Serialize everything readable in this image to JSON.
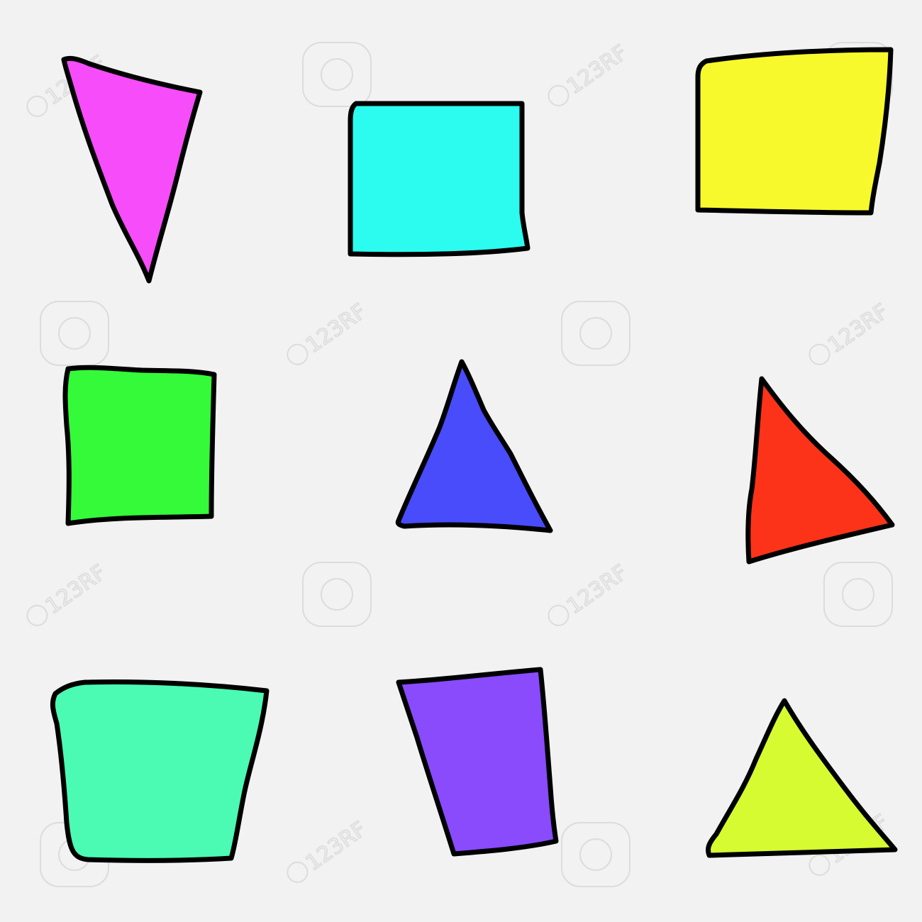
{
  "background": "#f2f2f2",
  "outline_color": "#000000",
  "watermark": {
    "text": "123RF"
  },
  "shapes": [
    {
      "name": "magenta-triangle",
      "kind": "triangle",
      "color": "#f74cfa"
    },
    {
      "name": "cyan-rectangle",
      "kind": "quadrilateral",
      "color": "#2cfbf0"
    },
    {
      "name": "yellow-rectangle",
      "kind": "quadrilateral",
      "color": "#f8f92d"
    },
    {
      "name": "green-square",
      "kind": "quadrilateral",
      "color": "#34fa39"
    },
    {
      "name": "blue-triangle",
      "kind": "triangle",
      "color": "#484cfb"
    },
    {
      "name": "red-triangle",
      "kind": "triangle",
      "color": "#fc3319"
    },
    {
      "name": "aquamarine-trapezoid",
      "kind": "quadrilateral",
      "color": "#4bfbb3"
    },
    {
      "name": "purple-trapezoid",
      "kind": "quadrilateral",
      "color": "#894bfc"
    },
    {
      "name": "lime-triangle",
      "kind": "triangle",
      "color": "#d6fb31"
    }
  ]
}
